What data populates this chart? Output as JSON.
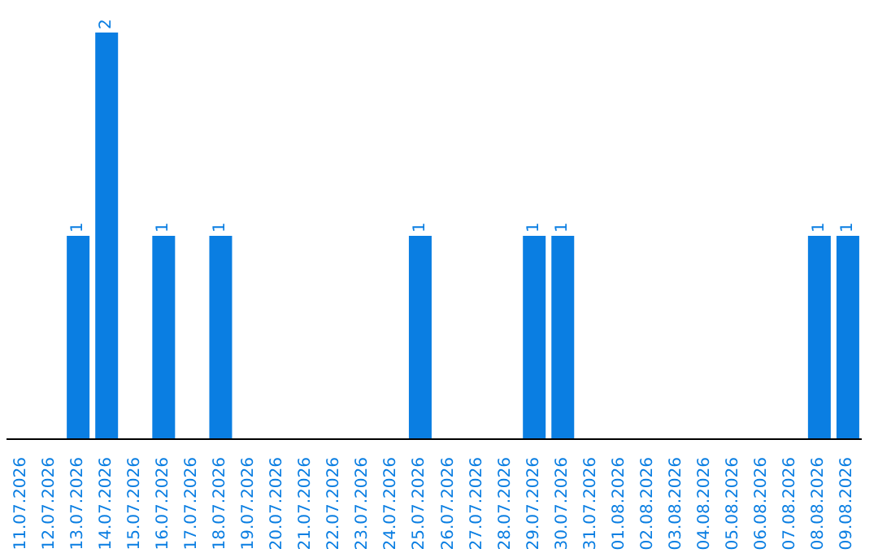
{
  "chart_data": {
    "type": "bar",
    "categories": [
      "11.07.2026",
      "12.07.2026",
      "13.07.2026",
      "14.07.2026",
      "15.07.2026",
      "16.07.2026",
      "17.07.2026",
      "18.07.2026",
      "19.07.2026",
      "20.07.2026",
      "21.07.2026",
      "22.07.2026",
      "23.07.2026",
      "24.07.2026",
      "25.07.2026",
      "26.07.2026",
      "27.07.2026",
      "28.07.2026",
      "29.07.2026",
      "30.07.2026",
      "31.07.2026",
      "01.08.2026",
      "02.08.2026",
      "03.08.2026",
      "04.08.2026",
      "05.08.2026",
      "06.08.2026",
      "07.08.2026",
      "08.08.2026",
      "09.08.2026"
    ],
    "values": [
      0,
      0,
      1,
      2,
      0,
      1,
      0,
      1,
      0,
      0,
      0,
      0,
      0,
      0,
      1,
      0,
      0,
      0,
      1,
      1,
      0,
      0,
      0,
      0,
      0,
      0,
      0,
      0,
      1,
      1
    ],
    "value_labels": [
      null,
      null,
      "1",
      "2",
      null,
      "1",
      null,
      "1",
      null,
      null,
      null,
      null,
      null,
      null,
      "1",
      null,
      null,
      null,
      "1",
      "1",
      null,
      null,
      null,
      null,
      null,
      null,
      null,
      null,
      "1",
      "1"
    ],
    "color": "#0a7ee2"
  }
}
